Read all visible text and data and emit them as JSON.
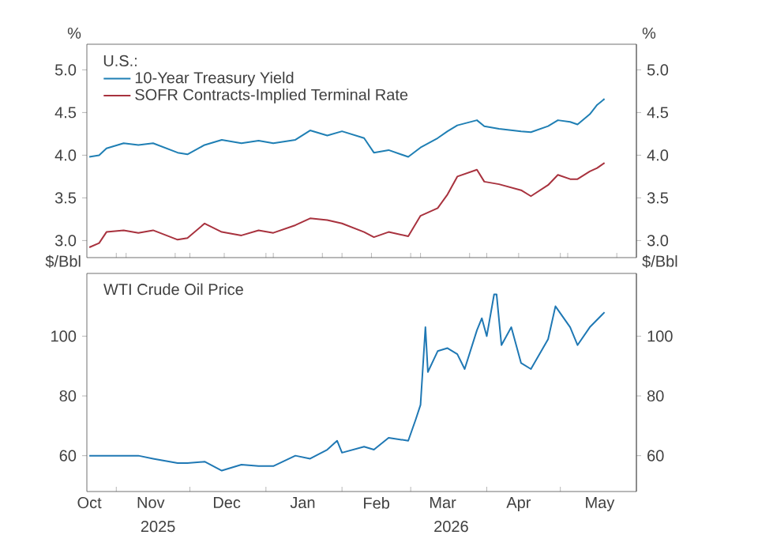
{
  "chart_data": [
    {
      "type": "line",
      "legend_title": "U.S.:",
      "ylabel": "%",
      "y2label": "%",
      "legend": "top left",
      "tick_labels": "y",
      "xlim": [
        "2025-10-20",
        "2026-06-01"
      ],
      "xticks": [
        {
          "value": "2025-11-01",
          "label": null
        },
        {
          "value": "2025-12-01",
          "label": null
        },
        {
          "value": "2026-01-01",
          "label": null
        },
        {
          "value": "2026-02-01",
          "label": null
        },
        {
          "value": "2026-03-01",
          "label": null
        },
        {
          "value": "2026-04-01",
          "label": null
        },
        {
          "value": "2026-05-01",
          "label": null
        }
      ],
      "ylim": [
        2.8,
        5.3
      ],
      "yticks": [
        {
          "value": 3,
          "label": "3.0"
        },
        {
          "value": 3.5,
          "label": "3.5"
        },
        {
          "value": 4,
          "label": "4.0"
        },
        {
          "value": 4.5,
          "label": "4.5"
        },
        {
          "value": 5,
          "label": "5.0"
        }
      ],
      "y2lim": [
        2.8,
        5.3
      ],
      "y2ticks": [
        {
          "value": 3,
          "label": "3.0"
        },
        {
          "value": 3.5,
          "label": "3.5"
        },
        {
          "value": 4,
          "label": "4.0"
        },
        {
          "value": 4.5,
          "label": "4.5"
        },
        {
          "value": 5,
          "label": "5.0"
        }
      ],
      "x": [
        "2025-10-21",
        "2025-10-25",
        "2025-10-28",
        "2025-11-04",
        "2025-11-10",
        "2025-11-16",
        "2025-11-26",
        "2025-11-30",
        "2025-12-07",
        "2025-12-14",
        "2025-12-22",
        "2025-12-29",
        "2026-01-04",
        "2026-01-13",
        "2026-01-19",
        "2026-01-26",
        "2026-02-01",
        "2026-02-10",
        "2026-02-14",
        "2026-02-20",
        "2026-02-28",
        "2026-03-05",
        "2026-03-12",
        "2026-03-16",
        "2026-03-20",
        "2026-03-28",
        "2026-03-31",
        "2026-04-06",
        "2026-04-15",
        "2026-04-19",
        "2026-04-26",
        "2026-04-30",
        "2026-05-05",
        "2026-05-08",
        "2026-05-13",
        "2026-05-16",
        "2026-05-19"
      ],
      "series": [
        {
          "name": "10-Year Treasury Yield",
          "color": "#1f7fb4",
          "values": [
            3.98,
            4.0,
            4.08,
            4.14,
            4.12,
            4.14,
            4.03,
            4.01,
            4.12,
            4.18,
            4.14,
            4.17,
            4.14,
            4.18,
            4.29,
            4.23,
            4.28,
            4.2,
            4.03,
            4.06,
            3.98,
            4.09,
            4.2,
            4.28,
            4.35,
            4.41,
            4.34,
            4.31,
            4.28,
            4.27,
            4.34,
            4.41,
            4.39,
            4.36,
            4.48,
            4.59,
            4.66
          ]
        },
        {
          "name": "SOFR Contracts-Implied Terminal Rate",
          "color": "#a8323e",
          "values": [
            2.92,
            2.97,
            3.1,
            3.12,
            3.09,
            3.12,
            3.01,
            3.03,
            3.2,
            3.1,
            3.06,
            3.12,
            3.09,
            3.18,
            3.26,
            3.24,
            3.2,
            3.1,
            3.04,
            3.1,
            3.05,
            3.29,
            3.38,
            3.54,
            3.75,
            3.83,
            3.69,
            3.66,
            3.59,
            3.52,
            3.65,
            3.77,
            3.72,
            3.72,
            3.81,
            3.85,
            3.91
          ]
        }
      ]
    },
    {
      "type": "line",
      "title": "WTI Crude Oil Price",
      "ylabel": "$/Bbl",
      "y2label": "$/Bbl",
      "xlim": [
        "2025-10-20",
        "2026-06-01"
      ],
      "xticks": [
        {
          "value": "2025-10-21",
          "label": "Oct"
        },
        {
          "value": "2025-11-01",
          "label": null
        },
        {
          "value": "2025-11-15",
          "label": "Nov"
        },
        {
          "value": "2025-12-01",
          "label": null
        },
        {
          "value": "2025-12-16",
          "label": "Dec"
        },
        {
          "value": "2026-01-01",
          "label": null
        },
        {
          "value": "2026-01-16",
          "label": "Jan"
        },
        {
          "value": "2026-02-01",
          "label": null
        },
        {
          "value": "2026-02-15",
          "label": "Feb"
        },
        {
          "value": "2026-03-01",
          "label": null
        },
        {
          "value": "2026-03-14",
          "label": "Mar"
        },
        {
          "value": "2026-04-01",
          "label": null
        },
        {
          "value": "2026-04-14",
          "label": "Apr"
        },
        {
          "value": "2026-05-01",
          "label": null
        },
        {
          "value": "2026-05-17",
          "label": "May"
        }
      ],
      "annotations": [
        "2025",
        "2026"
      ],
      "ylim": [
        48,
        121
      ],
      "yticks": [
        60,
        80,
        100
      ],
      "y2lim": [
        48,
        121
      ],
      "y2ticks": [
        60,
        80,
        100
      ],
      "series": [
        {
          "color": "#1f78b4",
          "x": [
            "2025-10-21",
            "2025-10-25",
            "2025-10-28",
            "2025-11-04",
            "2025-11-10",
            "2025-11-16",
            "2025-11-26",
            "2025-11-30",
            "2025-12-07",
            "2025-12-14",
            "2025-12-22",
            "2025-12-29",
            "2026-01-04",
            "2026-01-13",
            "2026-01-19",
            "2026-01-26",
            "2026-01-30",
            "2026-02-01",
            "2026-02-10",
            "2026-02-14",
            "2026-02-20",
            "2026-02-28",
            "2026-03-03",
            "2026-03-05",
            "2026-03-07",
            "2026-03-08",
            "2026-03-12",
            "2026-03-16",
            "2026-03-20",
            "2026-03-23",
            "2026-03-28",
            "2026-03-30",
            "2026-04-01",
            "2026-04-04",
            "2026-04-05",
            "2026-04-07",
            "2026-04-11",
            "2026-04-15",
            "2026-04-19",
            "2026-04-26",
            "2026-04-29",
            "2026-05-05",
            "2026-05-08",
            "2026-05-13",
            "2026-05-19"
          ],
          "values": [
            60,
            60,
            60,
            60,
            60,
            59,
            57.5,
            57.5,
            58,
            55,
            57,
            56.5,
            56.5,
            60,
            59,
            62,
            65,
            61,
            63,
            62,
            66,
            65,
            72,
            77,
            103,
            88,
            95,
            96,
            94,
            89,
            102,
            106,
            100,
            114,
            114,
            97,
            103,
            91,
            89,
            99,
            110,
            103,
            97,
            103,
            108
          ]
        }
      ]
    }
  ]
}
